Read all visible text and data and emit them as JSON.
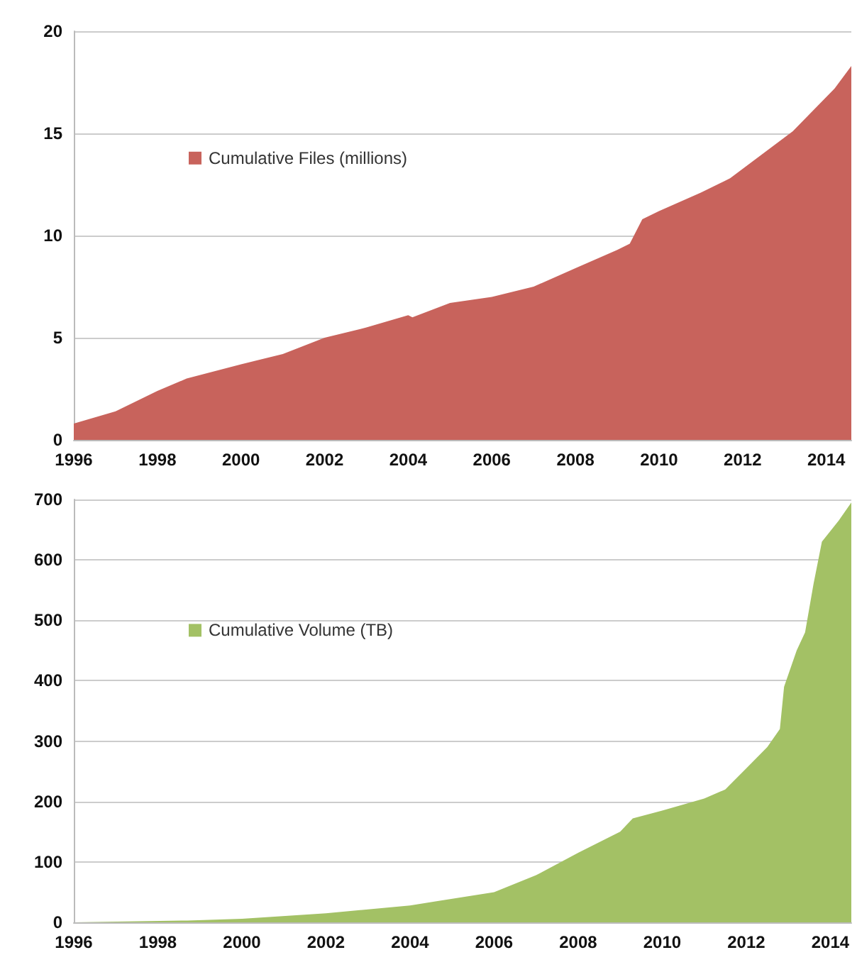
{
  "chart_data": [
    {
      "type": "area",
      "x": [
        1996,
        1997,
        1998,
        1998.7,
        2000,
        2001,
        2002,
        2003,
        2004,
        2004.1,
        2005,
        2006,
        2007,
        2008,
        2009,
        2009.3,
        2009.6,
        2010,
        2011,
        2011.7,
        2013.2,
        2014.2,
        2014.6
      ],
      "series": [
        {
          "name": "Cumulative Files (millions)",
          "color": "#c8635c",
          "values": [
            0.8,
            1.4,
            2.4,
            3.0,
            3.7,
            4.2,
            5.0,
            5.5,
            6.1,
            6.0,
            6.7,
            7.0,
            7.5,
            8.4,
            9.3,
            9.6,
            10.8,
            11.2,
            12.1,
            12.8,
            15.1,
            17.2,
            18.3
          ]
        }
      ],
      "xlim": [
        1996,
        2014.6
      ],
      "xticks": [
        1996,
        1998,
        2000,
        2002,
        2004,
        2006,
        2008,
        2010,
        2012,
        2014
      ],
      "ylim": [
        0,
        20
      ],
      "yticks": [
        0,
        5,
        10,
        15,
        20
      ],
      "grid": "y",
      "legend": "left"
    },
    {
      "type": "area",
      "x": [
        1996,
        1998.7,
        2000,
        2002,
        2004,
        2006,
        2007,
        2008,
        2009,
        2009.3,
        2010,
        2011,
        2011.5,
        2012,
        2012.5,
        2012.8,
        2012.9,
        2013.2,
        2013.4,
        2013.6,
        2013.8,
        2014.2,
        2014.5
      ],
      "series": [
        {
          "name": "Cumulative Volume (TB)",
          "color": "#a3c165",
          "values": [
            0,
            3,
            6,
            15,
            28,
            50,
            78,
            115,
            150,
            172,
            185,
            205,
            220,
            255,
            290,
            320,
            390,
            450,
            480,
            560,
            630,
            665,
            695
          ]
        }
      ],
      "xlim": [
        1996,
        2014.5
      ],
      "xticks": [
        1996,
        1998,
        2000,
        2002,
        2004,
        2006,
        2008,
        2010,
        2012,
        2014
      ],
      "ylim": [
        0,
        700
      ],
      "yticks": [
        0,
        100,
        200,
        300,
        400,
        500,
        600,
        700
      ],
      "grid": "y",
      "legend": "left"
    }
  ]
}
